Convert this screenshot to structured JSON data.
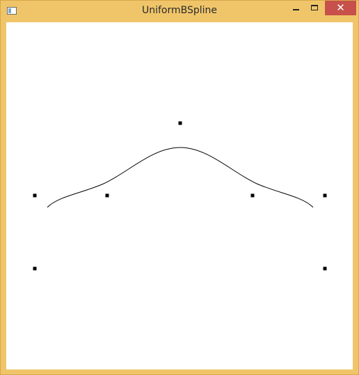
{
  "window": {
    "title": "UniformBSpline",
    "close_glyph": "✕"
  },
  "icons": {
    "app": "app-window-icon",
    "minimize": "minimize-icon",
    "maximize": "maximize-icon",
    "close": "close-icon"
  },
  "colors": {
    "frame": "#f0c56a",
    "close_button": "#c7504a",
    "canvas": "#ffffff",
    "curve": "#000000"
  }
}
